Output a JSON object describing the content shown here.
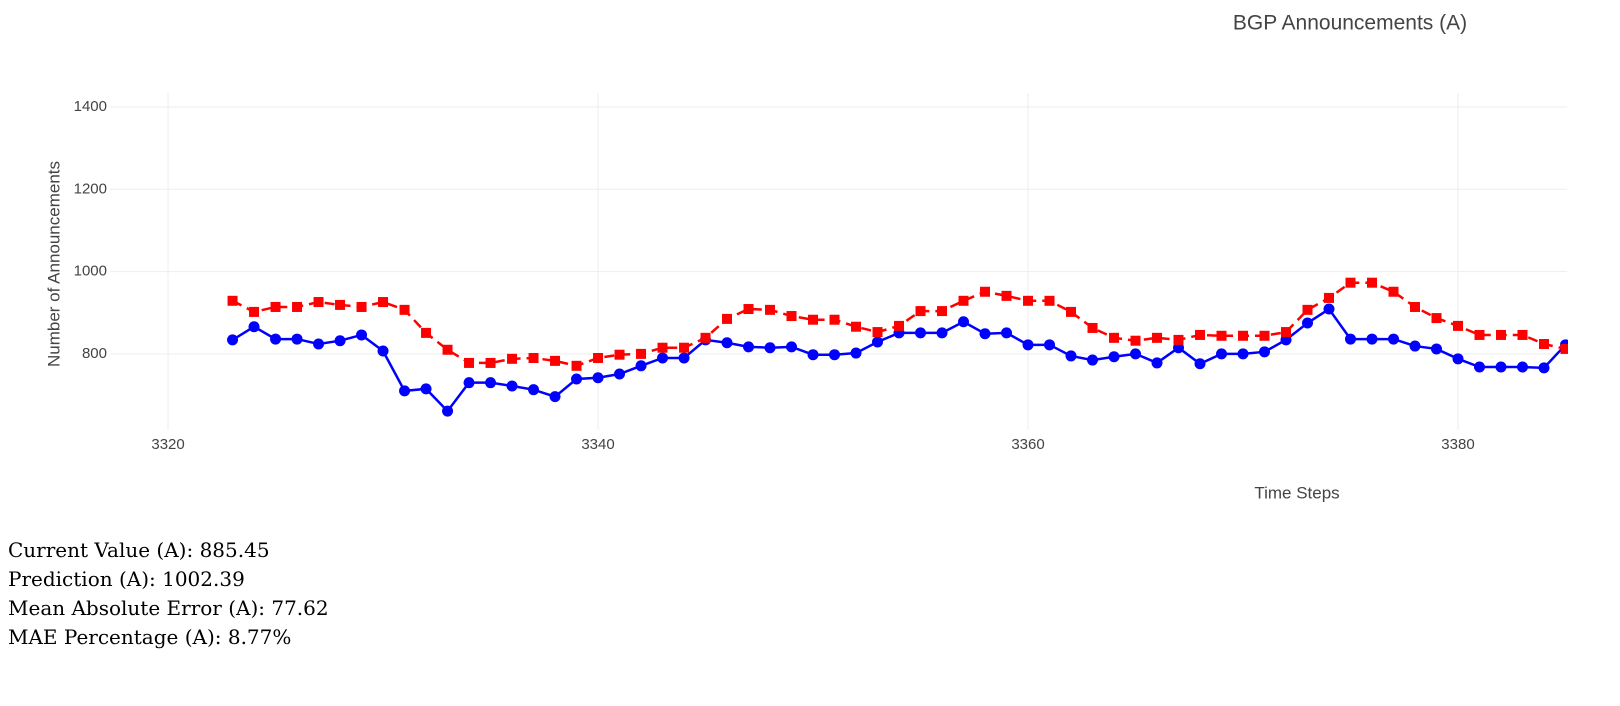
{
  "chart_data": {
    "type": "line",
    "title": "BGP Announcements (A)",
    "x_label": "Time Steps",
    "y_label": "Number of Announcements",
    "x": [
      3323,
      3324,
      3325,
      3326,
      3327,
      3328,
      3329,
      3330,
      3331,
      3332,
      3333,
      3334,
      3335,
      3336,
      3337,
      3338,
      3339,
      3340,
      3341,
      3342,
      3343,
      3344,
      3345,
      3346,
      3347,
      3348,
      3349,
      3350,
      3351,
      3352,
      3353,
      3354,
      3355,
      3356,
      3357,
      3358,
      3359,
      3360,
      3361,
      3362,
      3363,
      3364,
      3365,
      3366,
      3367,
      3368,
      3369,
      3370,
      3371,
      3372,
      3373,
      3374,
      3375,
      3376,
      3377,
      3378,
      3379,
      3380,
      3381,
      3382,
      3383,
      3384,
      3385
    ],
    "series": [
      {
        "color": "#0000ff",
        "dash": "solid",
        "marker": "circle",
        "values": [
          834,
          866,
          836,
          836,
          824,
          832,
          846,
          807,
          710,
          715,
          661,
          730,
          730,
          722,
          713,
          696,
          739,
          742,
          751,
          771,
          790,
          790,
          834,
          827,
          817,
          815,
          817,
          798,
          798,
          802,
          829,
          851,
          851,
          851,
          878,
          849,
          851,
          822,
          822,
          795,
          785,
          793,
          800,
          778,
          815,
          776,
          800,
          800,
          805,
          834,
          875,
          909,
          836,
          836,
          836,
          819,
          812,
          788,
          768,
          768,
          768,
          766,
          822
        ]
      },
      {
        "color": "#ff0000",
        "dash": "dash",
        "marker": "square",
        "values": [
          929,
          902,
          914,
          914,
          926,
          919,
          914,
          926,
          907,
          851,
          810,
          778,
          778,
          788,
          790,
          783,
          771,
          790,
          798,
          800,
          815,
          815,
          839,
          885,
          909,
          907,
          892,
          883,
          883,
          866,
          853,
          868,
          904,
          904,
          929,
          951,
          941,
          929,
          929,
          902,
          863,
          839,
          832,
          839,
          834,
          846,
          844,
          844,
          844,
          853,
          907,
          936,
          973,
          973,
          951,
          914,
          887,
          868,
          846,
          846,
          846,
          824,
          812
        ]
      }
    ],
    "xlim": [
      3317.3,
      3385.07
    ],
    "xticks": [
      3320,
      3340,
      3360,
      3380
    ],
    "ylim": [
      615,
      1434
    ],
    "yticks": [
      800,
      1000,
      1200,
      1400
    ],
    "grid": true
  },
  "stats": [
    "Current Value (A): 885.45",
    "Prediction (A): 1002.39",
    "Mean Absolute Error (A): 77.62",
    "MAE Percentage (A): 8.77%"
  ]
}
